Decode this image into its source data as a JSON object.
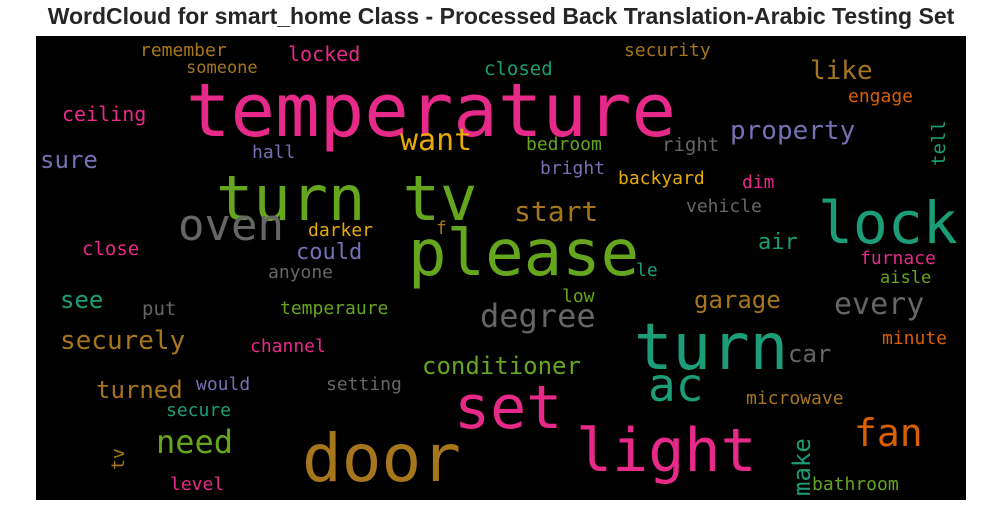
{
  "chart_data": {
    "type": "wordcloud",
    "title": "WordCloud for smart_home Class - Processed Back Translation-Arabic Testing Set",
    "words": [
      {
        "text": "temperature",
        "color": "#e7298a"
      },
      {
        "text": "turn tv",
        "color": "#66a61e"
      },
      {
        "text": "please",
        "color": "#66a61e"
      },
      {
        "text": "door",
        "color": "#a6761d"
      },
      {
        "text": "light",
        "color": "#e7298a"
      },
      {
        "text": "set",
        "color": "#e7298a"
      },
      {
        "text": "turn",
        "color": "#1b9e77"
      },
      {
        "text": "lock",
        "color": "#1b9e77"
      },
      {
        "text": "oven",
        "color": "#666666"
      },
      {
        "text": "ac",
        "color": "#1b9e77"
      },
      {
        "text": "fan",
        "color": "#d95f02"
      },
      {
        "text": "need",
        "color": "#66a61e"
      },
      {
        "text": "want",
        "color": "#e6ab02"
      },
      {
        "text": "start",
        "color": "#a6761d"
      },
      {
        "text": "degree",
        "color": "#666666"
      },
      {
        "text": "property",
        "color": "#7570b3"
      },
      {
        "text": "like",
        "color": "#a6761d"
      },
      {
        "text": "every",
        "color": "#666666"
      },
      {
        "text": "securely",
        "color": "#a6761d"
      },
      {
        "text": "conditioner",
        "color": "#66a61e"
      },
      {
        "text": "could",
        "color": "#7570b3"
      },
      {
        "text": "garage",
        "color": "#a6761d"
      },
      {
        "text": "turned",
        "color": "#a6761d"
      },
      {
        "text": "sure",
        "color": "#7570b3"
      },
      {
        "text": "see",
        "color": "#1b9e77"
      },
      {
        "text": "air",
        "color": "#1b9e77"
      },
      {
        "text": "car",
        "color": "#666666"
      },
      {
        "text": "make",
        "color": "#1b9e77"
      },
      {
        "text": "ceiling",
        "color": "#e7298a"
      },
      {
        "text": "remember",
        "color": "#a6761d"
      },
      {
        "text": "someone",
        "color": "#a6761d"
      },
      {
        "text": "locked",
        "color": "#e7298a"
      },
      {
        "text": "closed",
        "color": "#1b9e77"
      },
      {
        "text": "security",
        "color": "#a6761d"
      },
      {
        "text": "engage",
        "color": "#d95f02"
      },
      {
        "text": "tell",
        "color": "#1b9e77"
      },
      {
        "text": "right",
        "color": "#666666"
      },
      {
        "text": "bedroom",
        "color": "#66a61e"
      },
      {
        "text": "hall",
        "color": "#7570b3"
      },
      {
        "text": "bright",
        "color": "#7570b3"
      },
      {
        "text": "backyard",
        "color": "#e6ab02"
      },
      {
        "text": "dim",
        "color": "#e7298a"
      },
      {
        "text": "vehicle",
        "color": "#666666"
      },
      {
        "text": "darker",
        "color": "#e6ab02"
      },
      {
        "text": "f",
        "color": "#a6761d"
      },
      {
        "text": "close",
        "color": "#e7298a"
      },
      {
        "text": "anyone",
        "color": "#666666"
      },
      {
        "text": "le",
        "color": "#1b9e77"
      },
      {
        "text": "furnace",
        "color": "#e7298a"
      },
      {
        "text": "aisle",
        "color": "#66a61e"
      },
      {
        "text": "put",
        "color": "#666666"
      },
      {
        "text": "temperaure",
        "color": "#66a61e"
      },
      {
        "text": "low",
        "color": "#66a61e"
      },
      {
        "text": "channel",
        "color": "#e7298a"
      },
      {
        "text": "minute",
        "color": "#d95f02"
      },
      {
        "text": "would",
        "color": "#7570b3"
      },
      {
        "text": "setting",
        "color": "#666666"
      },
      {
        "text": "secure",
        "color": "#1b9e77"
      },
      {
        "text": "microwave",
        "color": "#a6761d"
      },
      {
        "text": "tv",
        "color": "#a6761d"
      },
      {
        "text": "level",
        "color": "#e7298a"
      },
      {
        "text": "bathroom",
        "color": "#66a61e"
      }
    ]
  }
}
